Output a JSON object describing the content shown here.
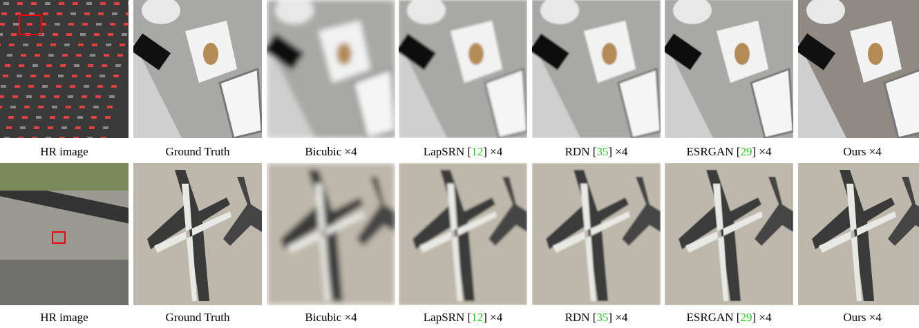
{
  "rows": [
    {
      "captions": [
        [
          {
            "text": "HR image"
          }
        ],
        [
          {
            "text": "Ground Truth"
          }
        ],
        [
          {
            "text": "Bicubic ×4"
          }
        ],
        [
          {
            "text": "LapSRN ["
          },
          {
            "text": "12",
            "cite": true
          },
          {
            "text": "] ×4"
          }
        ],
        [
          {
            "text": "RDN ["
          },
          {
            "text": "35",
            "cite": true
          },
          {
            "text": "] ×4"
          }
        ],
        [
          {
            "text": "ESRGAN ["
          },
          {
            "text": "29",
            "cite": true
          },
          {
            "text": "] ×4"
          }
        ],
        [
          {
            "text": "Ours ×4"
          }
        ]
      ]
    },
    {
      "captions": [
        [
          {
            "text": "HR image"
          }
        ],
        [
          {
            "text": "Ground Truth"
          }
        ],
        [
          {
            "text": "Bicubic ×4"
          }
        ],
        [
          {
            "text": "LapSRN ["
          },
          {
            "text": "12",
            "cite": true
          },
          {
            "text": "] ×4"
          }
        ],
        [
          {
            "text": "RDN ["
          },
          {
            "text": "35",
            "cite": true
          },
          {
            "text": "] ×4"
          }
        ],
        [
          {
            "text": "ESRGAN ["
          },
          {
            "text": "29",
            "cite": true
          },
          {
            "text": "] ×4"
          }
        ],
        [
          {
            "text": "Ours ×4"
          }
        ]
      ]
    }
  ]
}
